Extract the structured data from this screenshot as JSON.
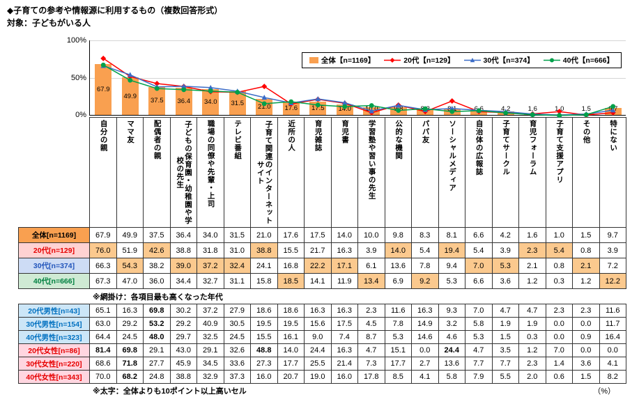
{
  "page": {
    "title": "◆子育ての参考や情報源に利用するもの（複数回答形式）",
    "subtitle": "対象：子どもがいる人",
    "note_shading": "※網掛け：各項目最も高くなった年代",
    "note_bold": "※太字：全体よりも10ポイント以上高いセル",
    "unit_label": "（%）"
  },
  "chart_data": {
    "type": "bar+line",
    "categories": [
      "自分の親",
      "ママ友",
      "配偶者の親",
      "子どもの保育園・幼稚園や学校の先生",
      "職場の同僚や先輩・上司",
      "テレビ番組",
      "子育て関連のインターネットサイト",
      "近所の人",
      "育児雑誌",
      "育児書",
      "学習塾や習い事の先生",
      "公的な機関",
      "パパ友",
      "ソーシャルメディア",
      "自治体の広報誌",
      "子育てサークル",
      "育児フォーラム",
      "子育て支援アプリ",
      "その他",
      "特にない"
    ],
    "series": [
      {
        "name": "全体【n=1169】",
        "type": "bar",
        "marker": "square",
        "color": "#F9A050",
        "values": [
          67.9,
          49.9,
          37.5,
          36.4,
          34.0,
          31.5,
          21.0,
          17.6,
          17.5,
          14.0,
          10.0,
          9.8,
          8.3,
          8.1,
          6.6,
          4.2,
          1.6,
          1.0,
          1.5,
          9.7
        ]
      },
      {
        "name": "20代【n=129】",
        "type": "line",
        "marker": "diamond",
        "color": "#FF0000",
        "values": [
          76.0,
          51.9,
          42.6,
          38.8,
          31.8,
          31.0,
          38.8,
          15.5,
          21.7,
          16.3,
          3.9,
          14.0,
          5.4,
          19.4,
          5.4,
          3.9,
          2.3,
          5.4,
          0.8,
          3.9
        ]
      },
      {
        "name": "30代【n=374】",
        "type": "line",
        "marker": "triangle",
        "color": "#3B6CC7",
        "values": [
          66.3,
          54.3,
          38.2,
          39.0,
          37.2,
          32.4,
          24.1,
          16.8,
          22.2,
          17.1,
          6.1,
          13.6,
          7.8,
          9.4,
          7.0,
          5.3,
          2.1,
          0.8,
          2.1,
          7.2
        ]
      },
      {
        "name": "40代【n=666】",
        "type": "line",
        "marker": "circle",
        "color": "#00A04A",
        "values": [
          67.3,
          47.0,
          36.0,
          34.4,
          32.7,
          31.1,
          15.8,
          18.5,
          14.1,
          11.9,
          13.4,
          6.9,
          9.2,
          5.3,
          6.6,
          3.6,
          1.2,
          0.3,
          1.2,
          12.2
        ]
      }
    ],
    "ylim": [
      0,
      100
    ],
    "yticks": [
      "100%",
      "50%",
      "0%"
    ],
    "legend_position": "top-right-inside",
    "grid": true
  },
  "table1": {
    "rows": [
      {
        "label": "全体[n=1169]",
        "style": "overall",
        "values": [
          67.9,
          49.9,
          37.5,
          36.4,
          34.0,
          31.5,
          21.0,
          17.6,
          17.5,
          14.0,
          10.0,
          9.8,
          8.3,
          8.1,
          6.6,
          4.2,
          1.6,
          1.0,
          1.5,
          9.7
        ]
      },
      {
        "label": "20代[n=129]",
        "style": "age20",
        "values": [
          76.0,
          51.9,
          42.6,
          38.8,
          31.8,
          31.0,
          38.8,
          15.5,
          21.7,
          16.3,
          3.9,
          14.0,
          5.4,
          19.4,
          5.4,
          3.9,
          2.3,
          5.4,
          0.8,
          3.9
        ]
      },
      {
        "label": "30代[n=374]",
        "style": "age30",
        "values": [
          66.3,
          54.3,
          38.2,
          39.0,
          37.2,
          32.4,
          24.1,
          16.8,
          22.2,
          17.1,
          6.1,
          13.6,
          7.8,
          9.4,
          7.0,
          5.3,
          2.1,
          0.8,
          2.1,
          7.2
        ]
      },
      {
        "label": "40代[n=666]",
        "style": "age40",
        "values": [
          67.3,
          47.0,
          36.0,
          34.4,
          32.7,
          31.1,
          15.8,
          18.5,
          14.1,
          11.9,
          13.4,
          6.9,
          9.2,
          5.3,
          6.6,
          3.6,
          1.2,
          0.3,
          1.2,
          12.2
        ]
      }
    ]
  },
  "table2": {
    "rows": [
      {
        "label": "20代男性[n=43]",
        "style": "male",
        "values": [
          65.1,
          16.3,
          69.8,
          30.2,
          37.2,
          27.9,
          18.6,
          18.6,
          16.3,
          16.3,
          2.3,
          11.6,
          16.3,
          9.3,
          7.0,
          4.7,
          4.7,
          2.3,
          2.3,
          11.6
        ]
      },
      {
        "label": "30代男性[n=154]",
        "style": "male",
        "values": [
          63.0,
          29.2,
          53.2,
          29.2,
          40.9,
          30.5,
          19.5,
          19.5,
          15.6,
          17.5,
          4.5,
          7.8,
          14.9,
          3.2,
          5.8,
          1.9,
          1.9,
          0.0,
          0.0,
          11.7
        ]
      },
      {
        "label": "40代男性[n=323]",
        "style": "male",
        "values": [
          64.4,
          24.5,
          48.0,
          29.7,
          32.5,
          24.5,
          15.5,
          16.1,
          9.0,
          7.4,
          8.7,
          5.3,
          14.6,
          4.6,
          5.3,
          1.5,
          0.3,
          0.0,
          0.9,
          16.4
        ]
      },
      {
        "label": "20代女性[n=86]",
        "style": "female",
        "values": [
          81.4,
          69.8,
          29.1,
          43.0,
          29.1,
          32.6,
          48.8,
          14.0,
          24.4,
          16.3,
          4.7,
          15.1,
          0.0,
          24.4,
          4.7,
          3.5,
          1.2,
          7.0,
          0.0,
          0.0
        ]
      },
      {
        "label": "30代女性[n=220]",
        "style": "female",
        "values": [
          68.6,
          71.8,
          27.7,
          45.9,
          34.5,
          33.6,
          27.3,
          17.7,
          25.5,
          21.4,
          7.3,
          17.7,
          2.7,
          13.6,
          7.7,
          7.7,
          2.3,
          1.4,
          3.6,
          4.1
        ]
      },
      {
        "label": "40代女性[n=343]",
        "style": "female",
        "values": [
          70.0,
          68.2,
          24.8,
          38.8,
          32.9,
          37.3,
          16.0,
          20.7,
          19.0,
          16.0,
          17.8,
          8.5,
          4.1,
          5.8,
          7.9,
          5.5,
          2.0,
          0.6,
          1.5,
          8.2
        ]
      }
    ]
  }
}
